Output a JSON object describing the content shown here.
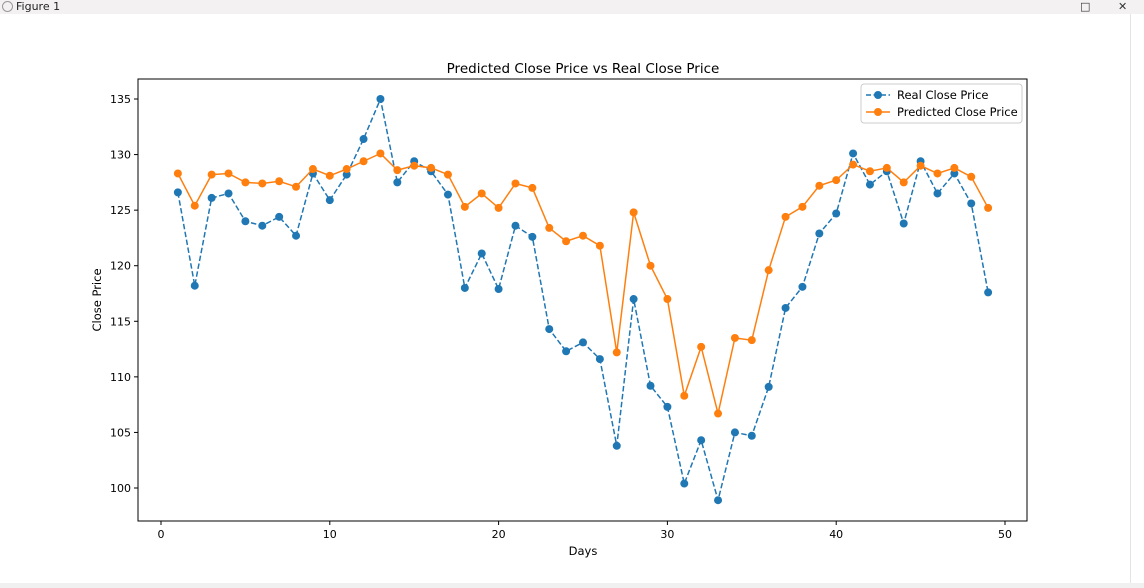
{
  "window": {
    "title": "Figure 1",
    "minimize_icon": "maximize-icon",
    "close_icon": "close-icon"
  },
  "chart_data": {
    "type": "line",
    "title": "Predicted Close Price vs Real Close Price",
    "xlabel": "Days",
    "ylabel": "Close Price",
    "xlim": [
      -1.4,
      51.3
    ],
    "ylim": [
      97.1,
      136.7
    ],
    "xticks": [
      0,
      10,
      20,
      30,
      40,
      50
    ],
    "yticks": [
      100,
      105,
      110,
      115,
      120,
      125,
      130,
      135
    ],
    "grid": false,
    "legend_placement": "upper right",
    "x": [
      1,
      2,
      3,
      4,
      5,
      6,
      7,
      8,
      9,
      10,
      11,
      12,
      13,
      14,
      15,
      16,
      17,
      18,
      19,
      20,
      21,
      22,
      23,
      24,
      25,
      26,
      27,
      28,
      29,
      30,
      31,
      32,
      33,
      34,
      35,
      36,
      37,
      38,
      39,
      40,
      41,
      42,
      43,
      44,
      45,
      46,
      47,
      48,
      49
    ],
    "series": [
      {
        "name": "Real Close Price",
        "color": "#1f77b4",
        "linestyle": "dashed",
        "marker": "circle",
        "values": [
          126.6,
          118.2,
          126.1,
          126.5,
          124.0,
          123.6,
          124.4,
          122.7,
          128.3,
          125.9,
          128.2,
          131.4,
          135.0,
          127.5,
          129.4,
          128.5,
          126.4,
          118.0,
          121.1,
          117.9,
          123.6,
          122.6,
          114.3,
          112.3,
          113.1,
          111.6,
          103.8,
          117.0,
          109.2,
          107.3,
          100.4,
          104.3,
          98.9,
          105.0,
          104.7,
          109.1,
          116.2,
          118.1,
          122.9,
          124.7,
          130.1,
          127.3,
          128.5,
          123.8,
          129.4,
          126.5,
          128.3,
          125.6,
          117.6
        ]
      },
      {
        "name": "Predicted Close Price",
        "color": "#ff7f0e",
        "linestyle": "solid",
        "marker": "circle",
        "values": [
          128.3,
          125.4,
          128.2,
          128.3,
          127.5,
          127.4,
          127.6,
          127.1,
          128.7,
          128.1,
          128.7,
          129.4,
          130.1,
          128.6,
          129.0,
          128.8,
          128.2,
          125.3,
          126.5,
          125.2,
          127.4,
          127.0,
          123.4,
          122.2,
          122.7,
          121.8,
          112.2,
          124.8,
          120.0,
          117.0,
          108.3,
          112.7,
          106.7,
          113.5,
          113.3,
          119.6,
          124.4,
          125.3,
          127.2,
          127.7,
          129.1,
          128.5,
          128.8,
          127.5,
          129.0,
          128.3,
          128.8,
          128.0,
          125.2
        ]
      }
    ]
  }
}
